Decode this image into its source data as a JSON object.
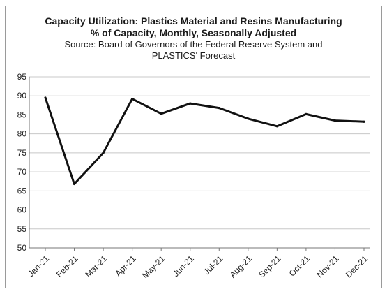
{
  "chart_data": {
    "type": "line",
    "title": "Capacity Utilization: Plastics Material and Resins Manufacturing",
    "subtitle": "% of Capacity, Monthly, Seasonally Adjusted",
    "source_line1": "Source: Board of Governors of the Federal Reserve System and",
    "source_line2": "PLASTICS' Forecast",
    "xlabel": "",
    "ylabel": "",
    "ylim": [
      50,
      95
    ],
    "yticks": [
      50,
      55,
      60,
      65,
      70,
      75,
      80,
      85,
      90,
      95
    ],
    "categories": [
      "Jan-21",
      "Feb-21",
      "Mar-21",
      "Apr-21",
      "May-21",
      "Jun-21",
      "Jul-21",
      "Aug-21",
      "Sep-21",
      "Oct-21",
      "Nov-21",
      "Dec-21"
    ],
    "series": [
      {
        "values": [
          89.5,
          66.8,
          75.0,
          89.2,
          85.3,
          88.0,
          86.8,
          84.0,
          82.0,
          85.2,
          83.5,
          83.2
        ],
        "color": "#111111"
      }
    ],
    "grid": true,
    "legend": "none",
    "gridColor": "#c8c8c8"
  }
}
